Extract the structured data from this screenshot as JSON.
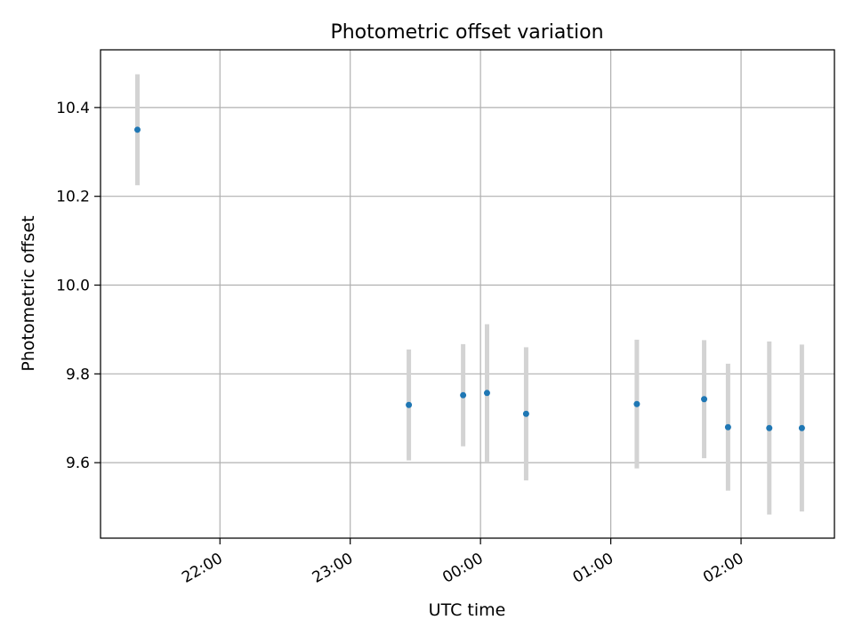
{
  "chart_data": {
    "type": "scatter",
    "title": "Photometric offset variation",
    "xlabel": "UTC time",
    "ylabel": "Photometric offset",
    "grid": true,
    "xlim": [
      "21:05",
      "02:43"
    ],
    "ylim": [
      9.43,
      10.53
    ],
    "x_ticks": [
      {
        "time": "22:00",
        "label": "22:00"
      },
      {
        "time": "23:00",
        "label": "23:00"
      },
      {
        "time": "24:00",
        "label": "00:00"
      },
      {
        "time": "25:00",
        "label": "01:00"
      },
      {
        "time": "26:00",
        "label": "02:00"
      }
    ],
    "y_ticks": [
      {
        "value": 9.6,
        "label": "9.6"
      },
      {
        "value": 9.8,
        "label": "9.8"
      },
      {
        "value": 10.0,
        "label": "10.0"
      },
      {
        "value": 10.2,
        "label": "10.2"
      },
      {
        "value": 10.4,
        "label": "10.4"
      }
    ],
    "points": [
      {
        "time": "21:22",
        "y": 10.35,
        "err": 0.125
      },
      {
        "time": "23:27",
        "y": 9.73,
        "err": 0.125
      },
      {
        "time": "23:52",
        "y": 9.752,
        "err": 0.115
      },
      {
        "time": "00:03",
        "y": 9.757,
        "err": 0.155
      },
      {
        "time": "00:21",
        "y": 9.71,
        "err": 0.15
      },
      {
        "time": "01:12",
        "y": 9.732,
        "err": 0.145
      },
      {
        "time": "01:43",
        "y": 9.743,
        "err": 0.133
      },
      {
        "time": "01:54",
        "y": 9.68,
        "err": 0.143
      },
      {
        "time": "02:13",
        "y": 9.678,
        "err": 0.195
      },
      {
        "time": "02:28",
        "y": 9.678,
        "err": 0.188
      }
    ],
    "colors": {
      "marker": "#1f77b4",
      "errorbar": "#d3d3d3",
      "grid": "#b0b0b0",
      "axes": "#000000"
    }
  }
}
